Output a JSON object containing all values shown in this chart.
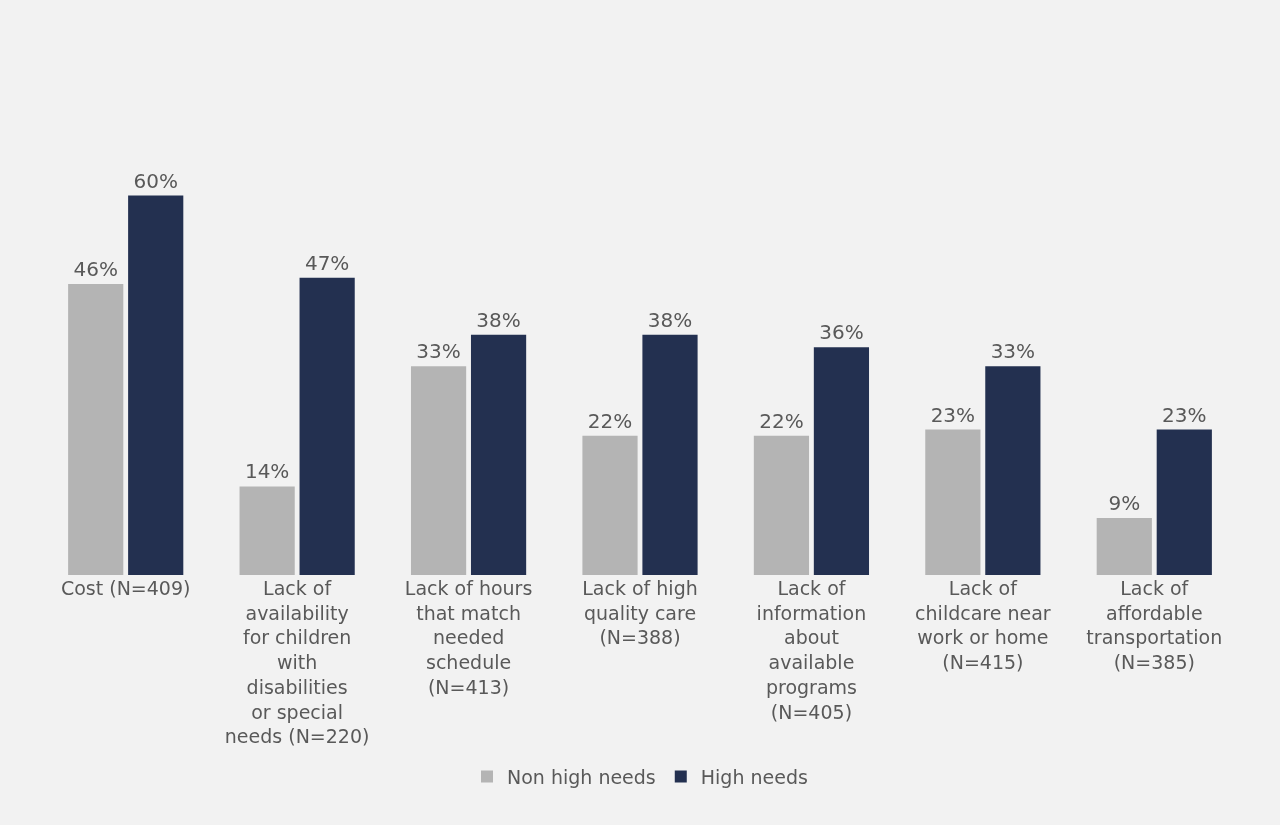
{
  "chart_data": {
    "type": "bar",
    "categories": [
      "Cost (N=409)",
      "Lack of availability for children with disabilities or special needs (N=220)",
      "Lack of hours that match needed schedule (N=413)",
      "Lack of high quality care (N=388)",
      "Lack of information about available programs (N=405)",
      "Lack of childcare near work or home (N=415)",
      "Lack of affordable transportation (N=385)"
    ],
    "series": [
      {
        "name": "Non high needs",
        "color": "#b4b4b4",
        "values": [
          46,
          14,
          33,
          22,
          22,
          23,
          9
        ],
        "value_labels": [
          "46%",
          "14%",
          "33%",
          "22%",
          "22%",
          "23%",
          "9%"
        ]
      },
      {
        "name": "High needs",
        "color": "#233050",
        "values": [
          60,
          47,
          38,
          38,
          36,
          33,
          23
        ],
        "value_labels": [
          "60%",
          "47%",
          "38%",
          "38%",
          "36%",
          "33%",
          "23%"
        ]
      }
    ],
    "legend": "bottom"
  }
}
